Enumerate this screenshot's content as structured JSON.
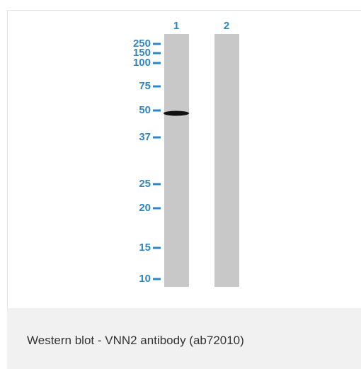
{
  "blot": {
    "lanes": [
      "1",
      "2"
    ],
    "markers": [
      "250",
      "150",
      "100",
      "75",
      "50",
      "37",
      "25",
      "20",
      "15",
      "10"
    ]
  },
  "caption": "Western blot - VNN2 antibody (ab72010)"
}
